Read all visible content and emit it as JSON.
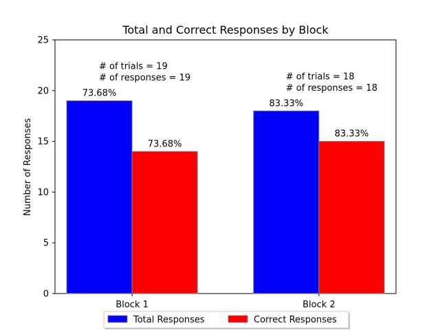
{
  "chart_data": {
    "type": "bar",
    "title": "Total and Correct Responses by Block",
    "xlabel": "",
    "ylabel": "Number of Responses",
    "ylim": [
      0,
      25
    ],
    "yticks": [
      0,
      5,
      10,
      15,
      20,
      25
    ],
    "grid": false,
    "legend_position": "bottom-center",
    "categories": [
      "Block 1",
      "Block 2"
    ],
    "series": [
      {
        "name": "Total Responses",
        "color": "#0000ff",
        "values": [
          19,
          18
        ],
        "labels": [
          "73.68%",
          "83.33%"
        ]
      },
      {
        "name": "Correct Responses",
        "color": "#ff0000",
        "values": [
          14,
          15
        ],
        "labels": [
          "73.68%",
          "83.33%"
        ]
      }
    ],
    "annotations": [
      {
        "category": "Block 1",
        "lines": [
          "# of trials = 19",
          "# of responses = 19"
        ]
      },
      {
        "category": "Block 2",
        "lines": [
          "# of trials = 18",
          "# of responses = 18"
        ]
      }
    ]
  }
}
